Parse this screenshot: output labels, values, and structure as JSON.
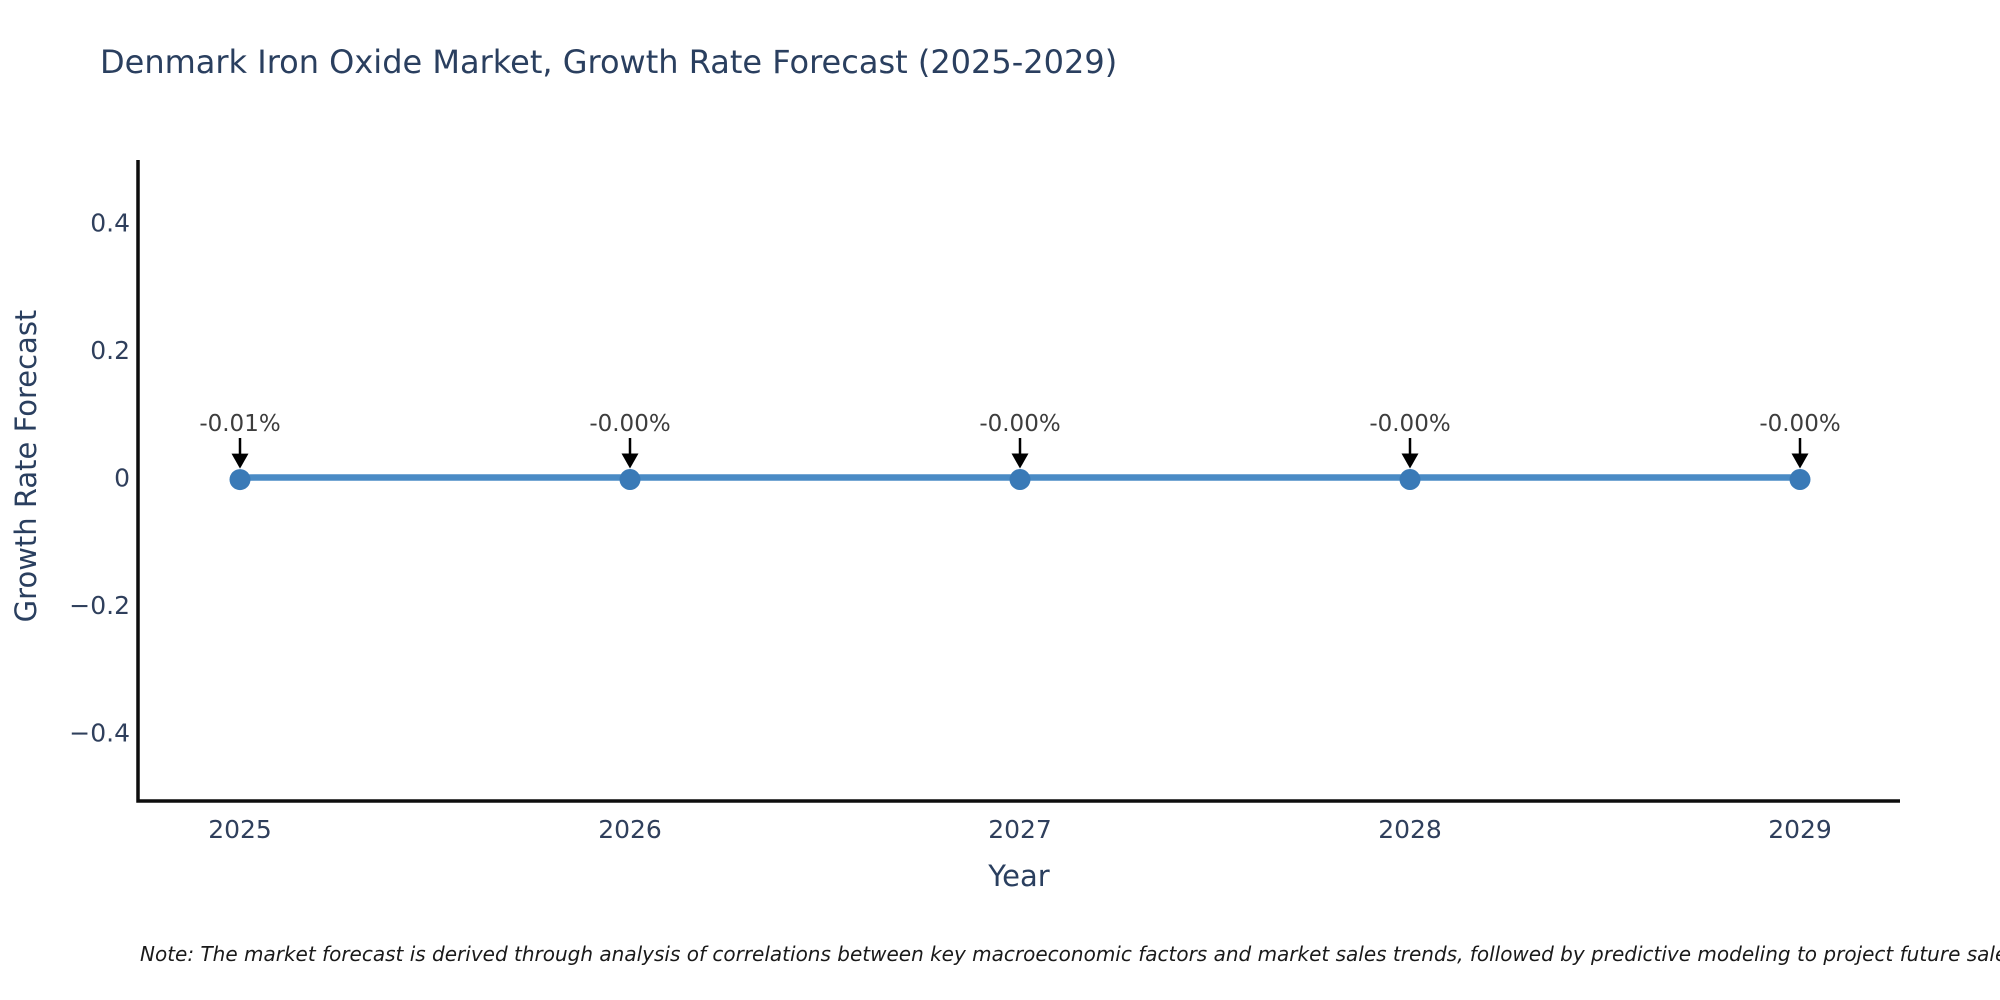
{
  "chart_data": {
    "type": "line",
    "title": "Denmark Iron Oxide Market, Growth Rate Forecast (2025-2029)",
    "xlabel": "Year",
    "ylabel": "Growth Rate Forecast",
    "x": [
      "2025",
      "2026",
      "2027",
      "2028",
      "2029"
    ],
    "series": [
      {
        "name": "Growth Rate Forecast",
        "values_pct": [
          -0.01,
          -0.0,
          -0.0,
          -0.0,
          -0.0
        ]
      }
    ],
    "data_labels": [
      "-0.01%",
      "-0.00%",
      "-0.00%",
      "-0.00%",
      "-0.00%"
    ],
    "yticks": [
      {
        "value": 0.4,
        "label": "0.4"
      },
      {
        "value": 0.2,
        "label": "0.2"
      },
      {
        "value": 0,
        "label": "0"
      },
      {
        "value": -0.2,
        "label": "−0.2"
      },
      {
        "value": -0.4,
        "label": "−0.4"
      }
    ],
    "ylim": [
      -0.5,
      0.5
    ],
    "grid": false,
    "legend": "none",
    "annotation_arrows": "down-to-point",
    "colors": {
      "line": "#4a8bc5",
      "marker": "#3a7ab7",
      "axis_line": "#0d0d0d",
      "title_text": "#2a3f5f",
      "tick_text": "#2f3f5c",
      "annotation_text": "#3d3d3d",
      "arrow": "#000000",
      "note_text": "#1a1a1a",
      "background": "#ffffff"
    },
    "note": "Note: The market forecast is derived through analysis of correlations between key macroeconomic factors and market sales trends, followed by predictive modeling to project future sales."
  }
}
